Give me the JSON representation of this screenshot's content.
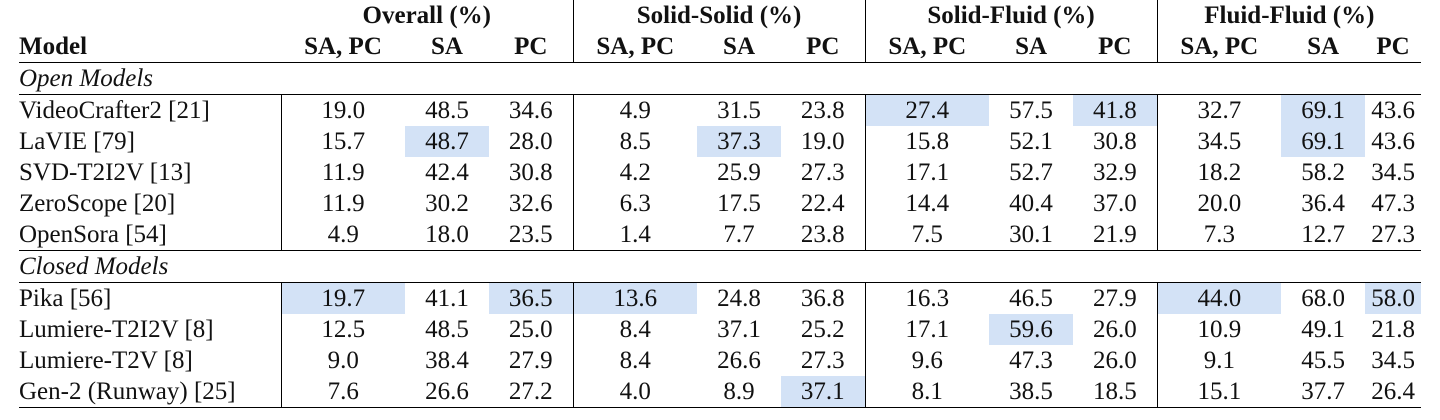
{
  "header": {
    "model_label": "Model",
    "groups": [
      "Overall (%)",
      "Solid-Solid (%)",
      "Solid-Fluid (%)",
      "Fluid-Fluid (%)"
    ],
    "subcolumns": [
      "SA, PC",
      "SA",
      "PC"
    ]
  },
  "sections": [
    {
      "label": "Open Models",
      "rows": [
        {
          "model": "VideoCrafter2 [21]",
          "values": [
            "19.0",
            "48.5",
            "34.6",
            "4.9",
            "31.5",
            "23.8",
            "27.4",
            "57.5",
            "41.8",
            "32.7",
            "69.1",
            "43.6"
          ],
          "highlight": [
            6,
            8,
            10
          ]
        },
        {
          "model": "LaVIE [79]",
          "values": [
            "15.7",
            "48.7",
            "28.0",
            "8.5",
            "37.3",
            "19.0",
            "15.8",
            "52.1",
            "30.8",
            "34.5",
            "69.1",
            "43.6"
          ],
          "highlight": [
            1,
            4,
            10
          ]
        },
        {
          "model": "SVD-T2I2V [13]",
          "values": [
            "11.9",
            "42.4",
            "30.8",
            "4.2",
            "25.9",
            "27.3",
            "17.1",
            "52.7",
            "32.9",
            "18.2",
            "58.2",
            "34.5"
          ],
          "highlight": []
        },
        {
          "model": "ZeroScope [20]",
          "values": [
            "11.9",
            "30.2",
            "32.6",
            "6.3",
            "17.5",
            "22.4",
            "14.4",
            "40.4",
            "37.0",
            "20.0",
            "36.4",
            "47.3"
          ],
          "highlight": []
        },
        {
          "model": "OpenSora [54]",
          "values": [
            "4.9",
            "18.0",
            "23.5",
            "1.4",
            "7.7",
            "23.8",
            "7.5",
            "30.1",
            "21.9",
            "7.3",
            "12.7",
            "27.3"
          ],
          "highlight": []
        }
      ]
    },
    {
      "label": "Closed Models",
      "rows": [
        {
          "model": "Pika [56]",
          "values": [
            "19.7",
            "41.1",
            "36.5",
            "13.6",
            "24.8",
            "36.8",
            "16.3",
            "46.5",
            "27.9",
            "44.0",
            "68.0",
            "58.0"
          ],
          "highlight": [
            0,
            2,
            3,
            9,
            11
          ]
        },
        {
          "model": "Lumiere-T2I2V [8]",
          "values": [
            "12.5",
            "48.5",
            "25.0",
            "8.4",
            "37.1",
            "25.2",
            "17.1",
            "59.6",
            "26.0",
            "10.9",
            "49.1",
            "21.8"
          ],
          "highlight": [
            7
          ]
        },
        {
          "model": "Lumiere-T2V [8]",
          "values": [
            "9.0",
            "38.4",
            "27.9",
            "8.4",
            "26.6",
            "27.3",
            "9.6",
            "47.3",
            "26.0",
            "9.1",
            "45.5",
            "34.5"
          ],
          "highlight": []
        },
        {
          "model": "Gen-2 (Runway) [25]",
          "values": [
            "7.6",
            "26.6",
            "27.2",
            "4.0",
            "8.9",
            "37.1",
            "8.1",
            "38.5",
            "18.5",
            "15.1",
            "37.7",
            "26.4"
          ],
          "highlight": [
            5
          ]
        }
      ]
    }
  ],
  "colors": {
    "highlight": "#d3e2f6",
    "text": "#111111",
    "rule": "#000000"
  }
}
